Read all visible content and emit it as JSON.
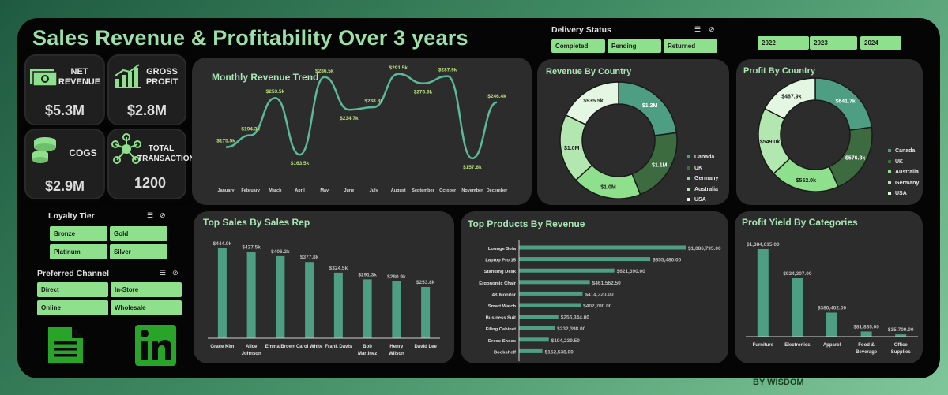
{
  "title": "Sales Revenue & Profitability Over 3 years",
  "byline": "BY WISDOM",
  "kpis": [
    {
      "label1": "NET",
      "label2": "REVENUE",
      "value": "$5.3M",
      "icon": "cash-icon"
    },
    {
      "label1": "GROSS",
      "label2": "PROFIT",
      "value": "$2.8M",
      "icon": "growth-chart-icon"
    },
    {
      "label1": "COGS",
      "label2": "",
      "value": "$2.9M",
      "icon": "coins-icon"
    },
    {
      "label1": "TOTAL",
      "label2": "TRANSACTIONS",
      "value": "1200",
      "icon": "network-icon"
    }
  ],
  "delivery": {
    "title": "Delivery Status",
    "options": [
      "Completed",
      "Pending",
      "Returned"
    ]
  },
  "years": [
    "2022",
    "2023",
    "2024"
  ],
  "loyalty": {
    "title": "Loyalty Tier",
    "options": [
      "Bronze",
      "Gold",
      "Platinum",
      "Silver"
    ]
  },
  "channel": {
    "title": "Preferred Channel",
    "options": [
      "Direct",
      "In-Store",
      "Online",
      "Wholesale"
    ]
  },
  "colors": {
    "accent": "#9be0a8",
    "chip": "#8fe08d",
    "teal": "#4e9e84",
    "line": "#5cb89a",
    "label": "#b6e07a"
  },
  "chart_data": [
    {
      "id": "monthly",
      "type": "line",
      "title": "Monthly Revenue Trend",
      "categories": [
        "January",
        "February",
        "March",
        "April",
        "May",
        "June",
        "July",
        "August",
        "September",
        "October",
        "November",
        "December"
      ],
      "values": [
        175.5,
        194.3,
        253.5,
        163.5,
        286.5,
        234.7,
        238.8,
        291.5,
        276.6,
        287.9,
        157.6,
        246.4
      ],
      "labels": [
        "$175.5k",
        "$194.3k",
        "$253.5k",
        "$163.5k",
        "$286.5k",
        "$234.7k",
        "$238.8k",
        "$291.5k",
        "$276.6k",
        "$287.9k",
        "$157.6k",
        "$246.4k"
      ]
    },
    {
      "id": "revcountry",
      "type": "pie",
      "title": "Revenue By Country",
      "categories": [
        "Canada",
        "UK",
        "Germany",
        "Australia",
        "USA"
      ],
      "values": [
        1.2,
        1.1,
        1.0,
        1.0,
        0.9355
      ],
      "labels": [
        "$1.2M",
        "$1.1M",
        "$1.0M",
        "$1.0M",
        "$935.5k"
      ],
      "colors": [
        "#4e9e84",
        "#3b6b3e",
        "#8fe08d",
        "#b2e8b0",
        "#e4f7e2"
      ],
      "legend": "right"
    },
    {
      "id": "profcountry",
      "type": "pie",
      "title": "Profit By Country",
      "categories": [
        "Canada",
        "UK",
        "Australia",
        "Germany",
        "USA"
      ],
      "values": [
        641.7,
        576.3,
        552.0,
        549.0,
        487.9
      ],
      "labels": [
        "$641.7k",
        "$576.3k",
        "$552.0k",
        "$549.0k",
        "$487.9k"
      ],
      "colors": [
        "#4e9e84",
        "#3b6b3e",
        "#8fe08d",
        "#b2e8b0",
        "#e4f7e2"
      ],
      "legend": "right"
    },
    {
      "id": "salesrep",
      "type": "bar",
      "title": "Top Sales By Sales Rep",
      "categories": [
        "Grace Kim",
        "Alice Johnson",
        "Emma Brown",
        "Carol White",
        "Frank Davis",
        "Bob Martinez",
        "Henry Wilson",
        "David Lee"
      ],
      "values": [
        444.9,
        427.5,
        406.2,
        377.8,
        324.5,
        291.3,
        280.9,
        253.8
      ],
      "labels": [
        "$444.9k",
        "$427.5k",
        "$406.2k",
        "$377.8k",
        "$324.5k",
        "$291.3k",
        "$280.9k",
        "$253.8k"
      ]
    },
    {
      "id": "products",
      "type": "bar",
      "orientation": "horizontal",
      "title": "Top Products By Revenue",
      "categories": [
        "Lounge Sofa",
        "Laptop Pro 15",
        "Standing Desk",
        "Ergonomic Chair",
        "4K Monitor",
        "Smart Watch",
        "Business Suit",
        "Filing Cabinet",
        "Dress Shoes",
        "Bookshelf"
      ],
      "values": [
        1086795,
        855480,
        621390,
        461562.5,
        414320,
        402700,
        256344,
        232398,
        194239.5,
        152538
      ],
      "labels": [
        "$1,086,795.00",
        "$855,480.00",
        "$621,390.00",
        "$461,562.50",
        "$414,320.00",
        "$402,700.00",
        "$256,344.00",
        "$232,398.00",
        "$194,239.50",
        "$152,538.00"
      ]
    },
    {
      "id": "categories",
      "type": "bar",
      "title": "Profit Yield By Categories",
      "categories": [
        "Furniture",
        "Electronics",
        "Apparel",
        "Food & Beverage",
        "Office Supplies"
      ],
      "values": [
        1384615,
        924307,
        380402,
        81885,
        35709
      ],
      "labels": [
        "$1,384,615.00",
        "$924,307.00",
        "$380,402.00",
        "$81,885.00",
        "$35,709.00"
      ]
    }
  ]
}
